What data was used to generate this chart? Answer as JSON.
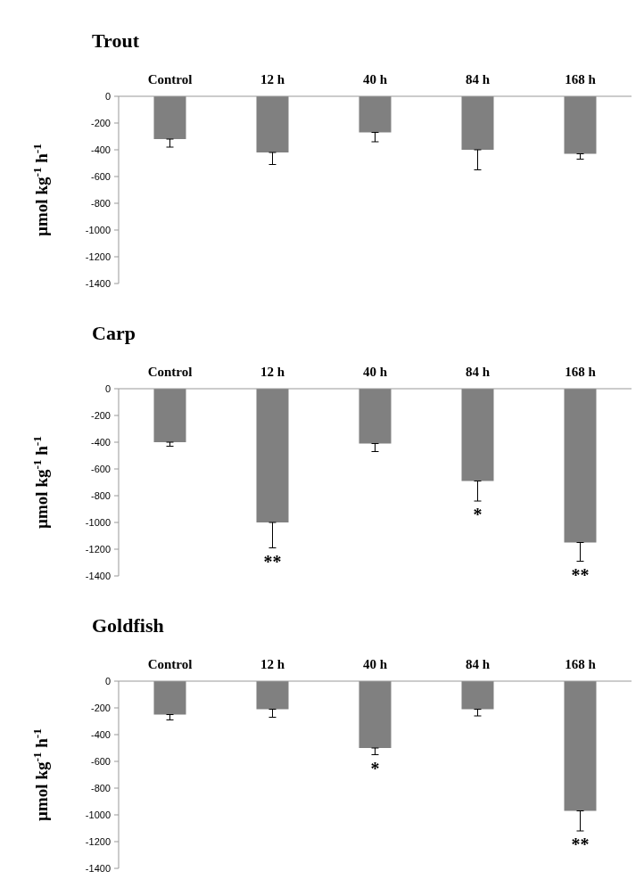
{
  "chart_data": [
    {
      "type": "bar",
      "title": "Trout",
      "ylabel": "µmol kg$^{-1}$ h$^{-1}$",
      "categories": [
        "Control",
        "12 h",
        "40 h",
        "84 h",
        "168 h"
      ],
      "values": [
        -320,
        -420,
        -270,
        -400,
        -430
      ],
      "errors": [
        [
          -380,
          -320
        ],
        [
          -510,
          -420
        ],
        [
          -340,
          -270
        ],
        [
          -550,
          -400
        ],
        [
          -470,
          -430
        ]
      ],
      "color": "#808080",
      "ylim": [
        -1400,
        0
      ],
      "yticks": [
        0,
        -200,
        -400,
        -600,
        -800,
        -1000,
        -1200,
        -1400
      ],
      "grid": false,
      "legend": false
    },
    {
      "type": "bar",
      "title": "Carp",
      "ylabel": "µmol kg$^{-1}$ h$^{-1}$",
      "categories": [
        "Control",
        "12 h",
        "40 h",
        "84 h",
        "168 h"
      ],
      "values": [
        -400,
        -1000,
        -410,
        -690,
        -1150
      ],
      "errors": [
        [
          -430,
          -400
        ],
        [
          -1190,
          -1000
        ],
        [
          -470,
          -410
        ],
        [
          -840,
          -690
        ],
        [
          -1290,
          -1150
        ]
      ],
      "color": "#808080",
      "ylim": [
        -1400,
        0
      ],
      "yticks": [
        0,
        -200,
        -400,
        -600,
        -800,
        -1000,
        -1200,
        -1400
      ],
      "grid": false,
      "legend": false,
      "annotations": [
        {
          "text": "**",
          "x": "12 h",
          "y": -1190
        },
        {
          "text": "*",
          "x": "84 h",
          "y": -840
        },
        {
          "text": "**",
          "x": "168 h",
          "y": -1290
        }
      ]
    },
    {
      "type": "bar",
      "title": "Goldfish",
      "ylabel": "µmol kg$^{-1}$ h$^{-1}$",
      "categories": [
        "Control",
        "12 h",
        "40 h",
        "84 h",
        "168 h"
      ],
      "values": [
        -250,
        -210,
        -500,
        -210,
        -970
      ],
      "errors": [
        [
          -290,
          -250
        ],
        [
          -270,
          -210
        ],
        [
          -550,
          -500
        ],
        [
          -260,
          -210
        ],
        [
          -1120,
          -970
        ]
      ],
      "color": "#808080",
      "ylim": [
        -1400,
        0
      ],
      "yticks": [
        0,
        -200,
        -400,
        -600,
        -800,
        -1000,
        -1200,
        -1400
      ],
      "grid": false,
      "legend": false,
      "annotations": [
        {
          "text": "*",
          "x": "40 h",
          "y": -550
        },
        {
          "text": "**",
          "x": "168 h",
          "y": -1120
        }
      ]
    }
  ]
}
